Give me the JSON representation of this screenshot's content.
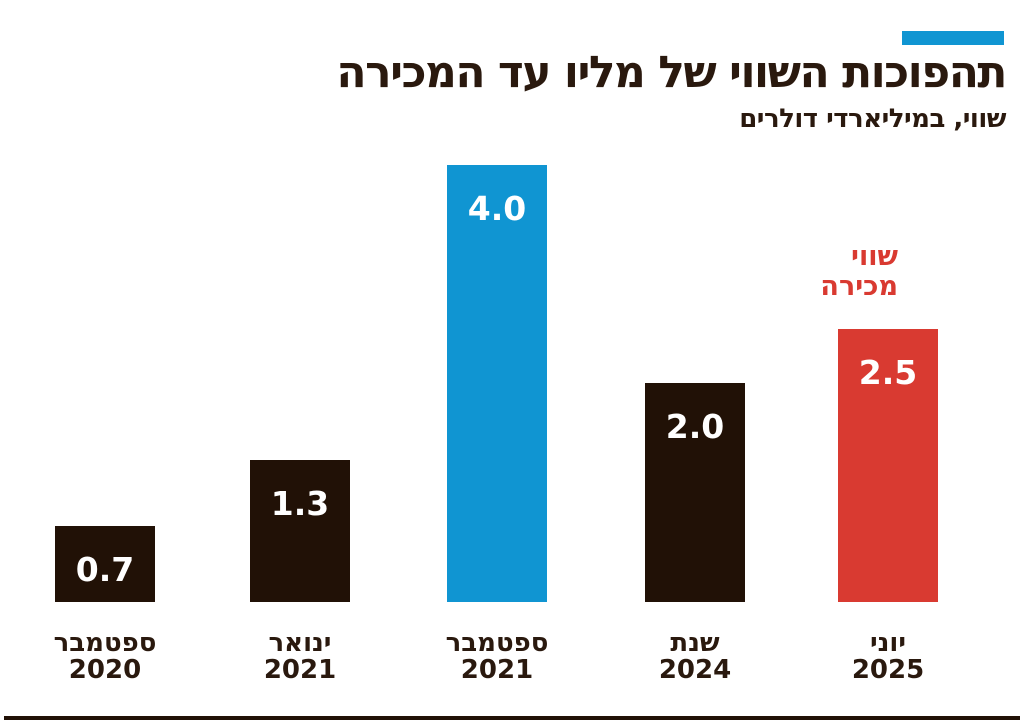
{
  "header": {
    "title": "תהפוכות השווי של מליו עד המכירה",
    "subtitle": "שווי, במיליארדי דולרים"
  },
  "annotation": {
    "line1": "שווי",
    "line2": "מכירה"
  },
  "colors": {
    "dark": "#211106",
    "blue": "#1095d2",
    "red": "#d93a31",
    "text": "#2a190e",
    "value_text": "#ffffff"
  },
  "bars": [
    {
      "value_label": "0.7",
      "month": "ספטמבר",
      "year": "2020"
    },
    {
      "value_label": "1.3",
      "month": "ינואר",
      "year": "2021"
    },
    {
      "value_label": "4.0",
      "month": "ספטמבר",
      "year": "2021"
    },
    {
      "value_label": "2.0",
      "month": "שנת",
      "year": "2024"
    },
    {
      "value_label": "2.5",
      "month": "יוני",
      "year": "2025"
    }
  ],
  "chart_data": {
    "type": "bar",
    "title": "תהפוכות השווי של מליו עד המכירה",
    "subtitle": "שווי, במיליארדי דולרים",
    "categories": [
      "ספטמבר 2020",
      "ינואר 2021",
      "ספטמבר 2021",
      "שנת 2024",
      "יוני 2025"
    ],
    "values": [
      0.7,
      1.3,
      4.0,
      2.0,
      2.5
    ],
    "value_labels": [
      "0.7",
      "1.3",
      "4.0",
      "2.0",
      "2.5"
    ],
    "bar_colors": [
      "#211106",
      "#211106",
      "#1095d2",
      "#211106",
      "#d93a31"
    ],
    "ylim": [
      0,
      4.0
    ],
    "grid": false,
    "legend": false,
    "value_label_position": "inside-top",
    "annotation": {
      "text": "שווי מכירה",
      "category": "יוני 2025",
      "color": "#d93a31"
    },
    "direction": "rtl"
  }
}
